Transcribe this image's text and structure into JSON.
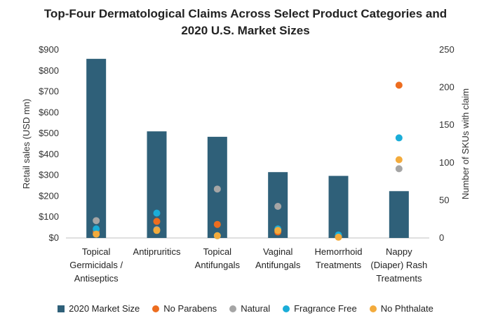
{
  "chart_data": {
    "type": "bar",
    "title_lines": [
      "Top-Four Dermatological Claims Across Select Product Categories and",
      "2020 U.S. Market Sizes"
    ],
    "categories": [
      [
        "Topical",
        "Germicidals /",
        "Antiseptics"
      ],
      [
        "Antipruritics"
      ],
      [
        "Topical",
        "Antifungals"
      ],
      [
        "Vaginal",
        "Antifungals"
      ],
      [
        "Hemorrhoid",
        "Treatments"
      ],
      [
        "Nappy",
        "(Diaper) Rash",
        "Treatments"
      ]
    ],
    "ylabel_left": "Retail sales (USD mn)",
    "ylabel_right": "Number of SKUs with claim",
    "y_left": {
      "min": 0,
      "max": 900,
      "step": 100,
      "tick_labels": [
        "$0",
        "$100",
        "$200",
        "$300",
        "$400",
        "$500",
        "$600",
        "$700",
        "$800",
        "$900"
      ]
    },
    "y_right": {
      "min": 0,
      "max": 250,
      "step": 50,
      "tick_labels": [
        "0",
        "50",
        "100",
        "150",
        "200",
        "250"
      ]
    },
    "bar_series": {
      "name": "2020 Market Size",
      "color": "#2f6079",
      "values": [
        857,
        510,
        484,
        315,
        297,
        224
      ]
    },
    "point_series": [
      {
        "name": "No Parabens",
        "color": "#ed6d1f",
        "values": [
          8,
          22,
          18,
          8,
          2,
          203
        ]
      },
      {
        "name": "Natural",
        "color": "#a5a5a5",
        "values": [
          23,
          11,
          65,
          42,
          2,
          92
        ]
      },
      {
        "name": "Fragrance Free",
        "color": "#1aadd8",
        "values": [
          12,
          33,
          3,
          12,
          4,
          133
        ]
      },
      {
        "name": "No Phthalate",
        "color": "#f3ab3c",
        "values": [
          5,
          10,
          3,
          10,
          1,
          104
        ]
      }
    ],
    "gridlines": false,
    "legend_position": "bottom"
  }
}
